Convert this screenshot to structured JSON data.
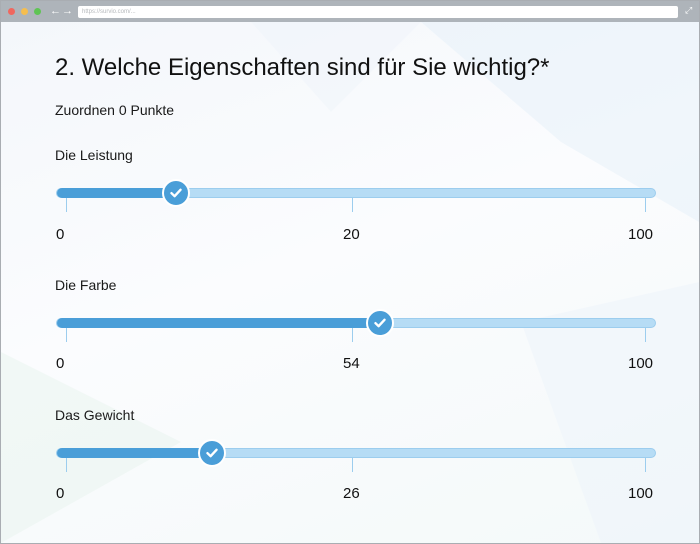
{
  "browser": {
    "url": "https://survio.com/..."
  },
  "question": {
    "title": "2. Welche Eigenschaften sind für Sie wichtig?*",
    "points_label": "Zuordnen 0 Punkte"
  },
  "sliders": [
    {
      "label": "Die Leistung",
      "min": "0",
      "value": "20",
      "max": "100",
      "fraction": 0.2
    },
    {
      "label": "Die Farbe",
      "min": "0",
      "value": "54",
      "max": "100",
      "fraction": 0.54
    },
    {
      "label": "Das Gewicht",
      "min": "0",
      "value": "26",
      "max": "100",
      "fraction": 0.26
    }
  ],
  "colors": {
    "accent": "#4a9ed8",
    "track": "#b6dcf5"
  }
}
